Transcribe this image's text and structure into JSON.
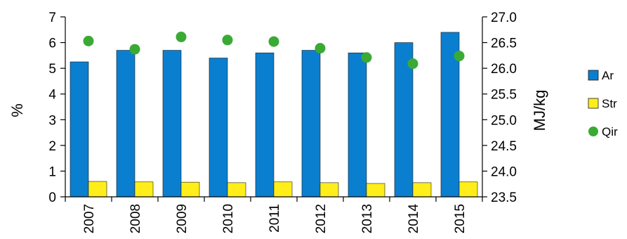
{
  "chart_data": {
    "type": "bar",
    "categories": [
      "2007",
      "2008",
      "2009",
      "2010",
      "2011",
      "2012",
      "2013",
      "2014",
      "2015"
    ],
    "series": [
      {
        "name": "Ar",
        "type": "bar",
        "axis": "left",
        "color": "#0a7fd0",
        "values": [
          5.25,
          5.7,
          5.7,
          5.4,
          5.6,
          5.7,
          5.6,
          6.0,
          6.4
        ]
      },
      {
        "name": "Str",
        "type": "bar",
        "axis": "left",
        "color": "#ffee1a",
        "values": [
          0.6,
          0.58,
          0.57,
          0.55,
          0.58,
          0.55,
          0.52,
          0.55,
          0.58
        ]
      },
      {
        "name": "Qir",
        "type": "scatter",
        "axis": "right",
        "color": "#3aaa35",
        "values": [
          26.53,
          26.37,
          26.61,
          26.55,
          26.52,
          26.39,
          26.21,
          26.09,
          26.24
        ]
      }
    ],
    "ylabel": "%",
    "ylim": [
      0,
      7
    ],
    "yticks": [
      "0",
      "1",
      "2",
      "3",
      "4",
      "5",
      "6",
      "7"
    ],
    "y2label": "MJ/kg",
    "y2lim": [
      23.5,
      27.0
    ],
    "y2ticks": [
      "23.5",
      "24.0",
      "24.5",
      "25.0",
      "25.5",
      "26.0",
      "26.5",
      "27.0"
    ],
    "grid": false,
    "legend_position": "right"
  }
}
